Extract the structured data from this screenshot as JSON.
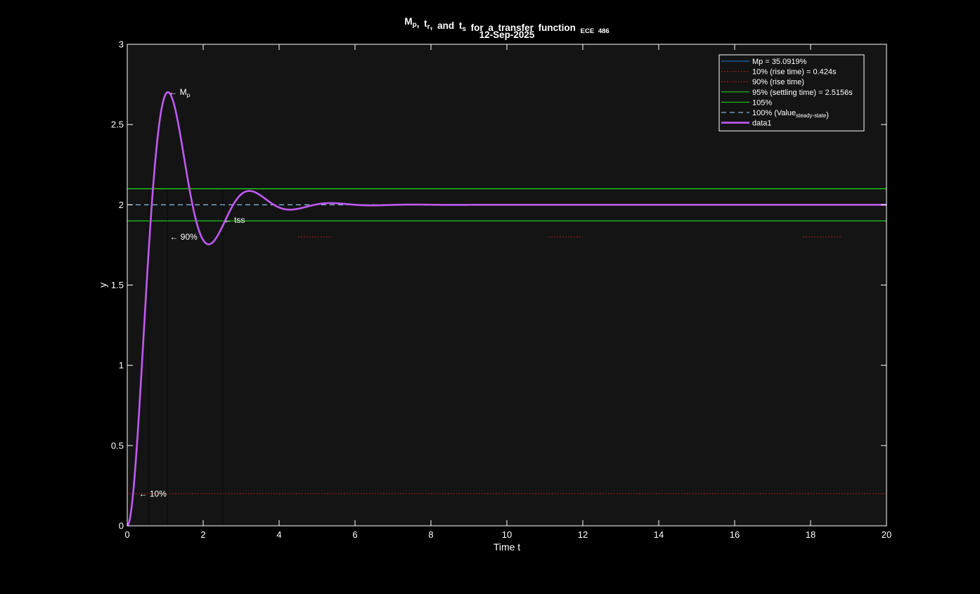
{
  "chart_data": {
    "type": "line",
    "title": {
      "main": [
        {
          "text": "M",
          "sub": "p"
        },
        {
          "text": ", t",
          "sub": "r"
        },
        {
          "text": ", and t",
          "sub": "s"
        },
        {
          "text": " for a transfer function "
        },
        {
          "text": "",
          "sub": "ECE 486"
        }
      ],
      "date": "12-Sep-2025"
    },
    "xlabel": "Time t",
    "ylabel": "y",
    "xlim": [
      0,
      20
    ],
    "ylim": [
      0,
      3
    ],
    "xticks": [
      0,
      2,
      4,
      6,
      8,
      10,
      12,
      14,
      16,
      18,
      20
    ],
    "yticks": [
      0,
      0.5,
      1,
      1.5,
      2,
      2.5,
      3
    ],
    "ytick_labels": [
      "0",
      "0.5",
      "1",
      "1.5",
      "2",
      "2.5",
      "3"
    ],
    "grid": false,
    "colors": {
      "background": "#000000",
      "axes_bg": "#141414",
      "axes": "#ffffff",
      "response": "#bf5af2",
      "mp": "#1f77d4",
      "rise": "#e0211d",
      "settle": "#1fdc1f",
      "steady": "#9fd4ff",
      "guide": "#000000",
      "text": "#ffffff"
    },
    "response": {
      "name": "data1",
      "steady_state": 2,
      "overshoot": 0.350919,
      "damped_freq": 2.93,
      "peak_time": 1.06,
      "sample_step": 0.02
    },
    "lines": {
      "steady": {
        "y": 2.0,
        "label": "100%"
      },
      "band_low": {
        "y": 1.9,
        "label": "95% (settling time) = 2.5156s"
      },
      "band_high": {
        "y": 2.1,
        "label": "105%"
      },
      "rise_low": {
        "y": 0.2
      },
      "rise_high": {
        "y": 1.8,
        "segments": [
          [
            4.5,
            5.4
          ],
          [
            11.1,
            12.0
          ],
          [
            17.8,
            18.8
          ]
        ]
      }
    },
    "markers": {
      "t10": 0.14,
      "t90": 0.564,
      "tp": 1.06,
      "ts": 2.5156
    },
    "annotations": {
      "mp": {
        "text": "← M",
        "sub": "p",
        "x": 1.06,
        "y": 2.7019
      },
      "tss": {
        "text": "← tss",
        "x": 2.5156,
        "y": 1.9
      },
      "p90": {
        "text": "← 90%",
        "x": 0.564,
        "y": 1.8
      },
      "p10": {
        "text": "← 10%",
        "x": 0.14,
        "y": 0.2
      }
    },
    "legend": {
      "placement": "top-right",
      "entries": [
        {
          "label": "Mp = 35.0919%",
          "style": "mp"
        },
        {
          "label": "10% (rise time) = 0.424s",
          "style": "rise"
        },
        {
          "label": "90% (rise time)",
          "style": "rise"
        },
        {
          "label": "95% (settling time) = 2.5156s",
          "style": "settle"
        },
        {
          "label": "105%",
          "style": "settle"
        },
        {
          "label": "100%  (Value",
          "sub": "steady-state",
          "tail": ")",
          "style": "steady"
        },
        {
          "label": "data1",
          "style": "response"
        }
      ]
    }
  }
}
